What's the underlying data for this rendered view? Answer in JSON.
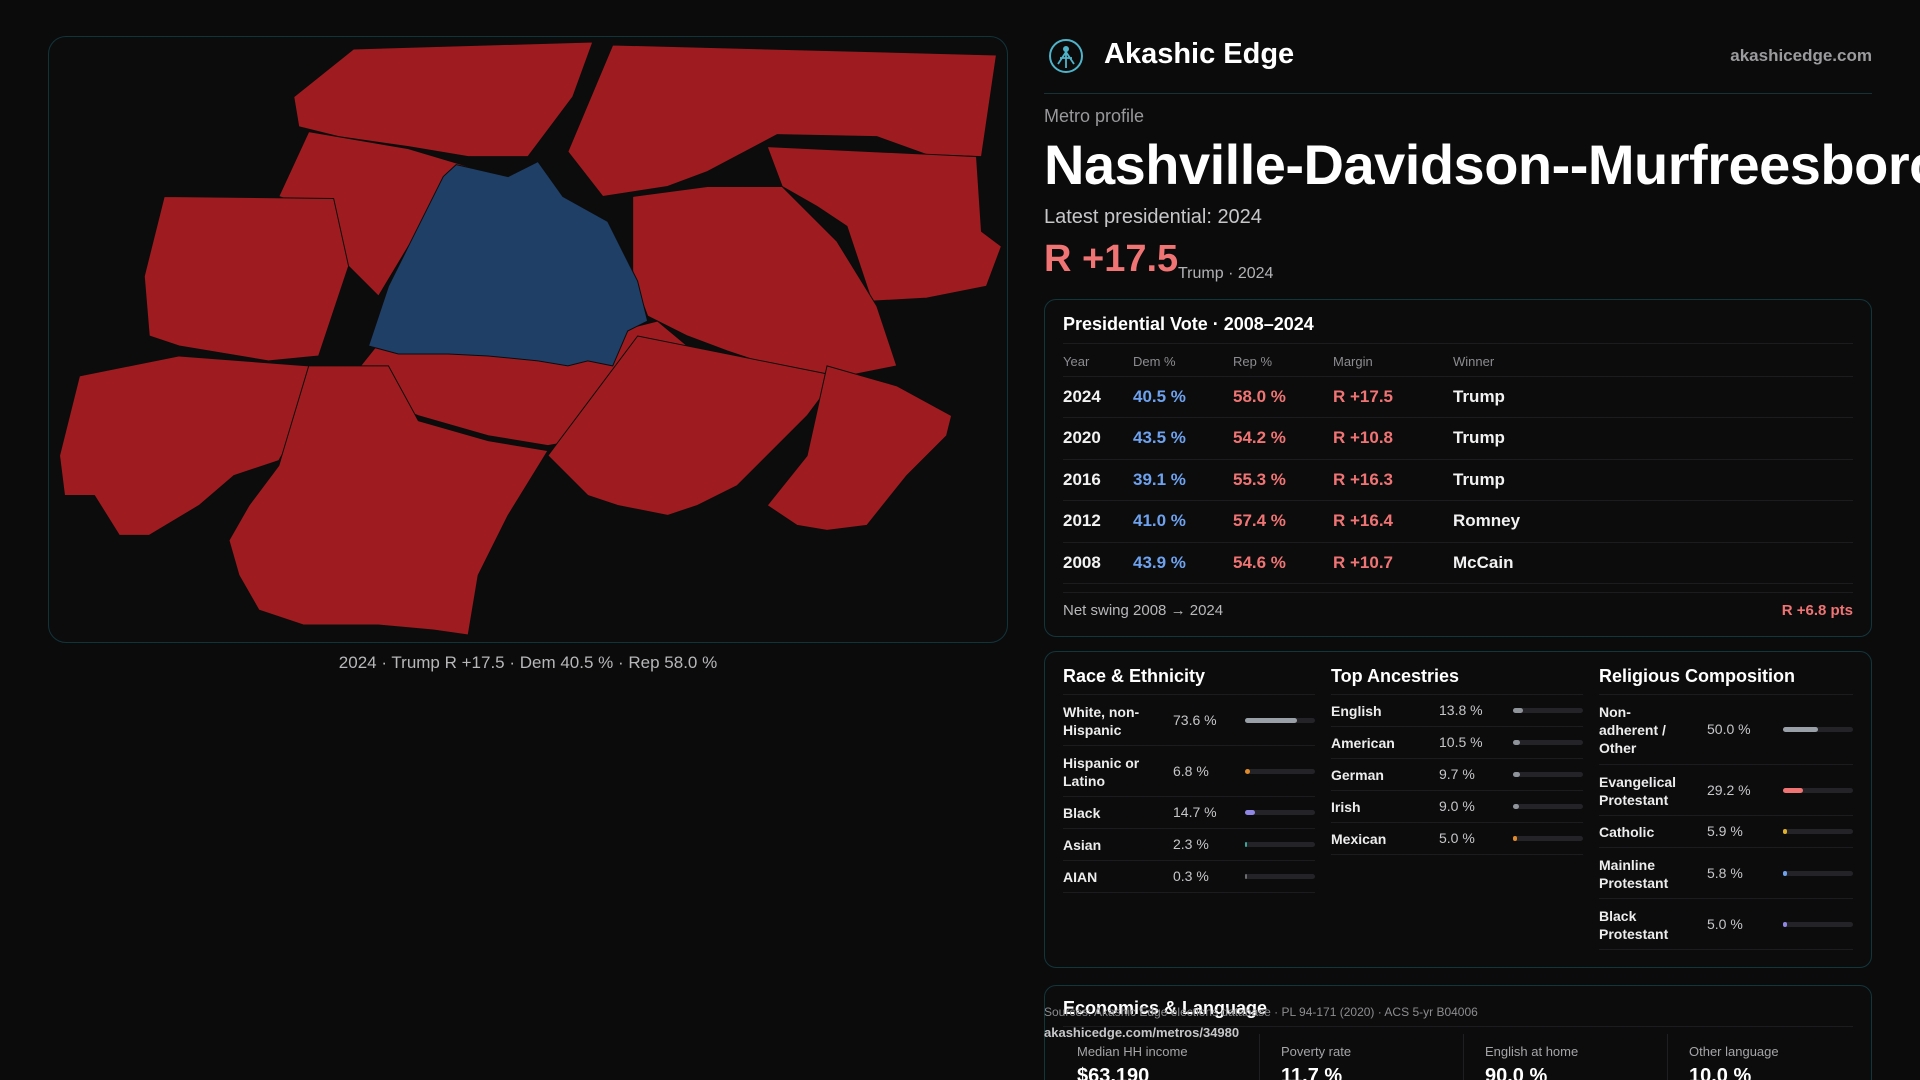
{
  "brand": {
    "name": "Akashic Edge",
    "domain": "akashicedge.com",
    "logo_icon": "compass-person-icon",
    "accent": "#4fb3c9"
  },
  "map": {
    "caption": "2024 · Trump R +17.5 · Dem 40.5 % · Rep 58.0 %",
    "rep_color": "#9e1c1f",
    "dem_color": "#1f3f66"
  },
  "header": {
    "eyebrow": "Metro profile",
    "title": "Nashville-Davidson--Murfreesboro",
    "latest": "Latest presidential: 2024",
    "margin": "R +17.5",
    "margin_sub": "Trump · 2024"
  },
  "vote": {
    "title": "Presidential Vote · 2008–2024",
    "columns": [
      "Year",
      "Dem %",
      "Rep %",
      "Margin",
      "Winner"
    ],
    "rows": [
      {
        "year": "2024",
        "dem": "40.5 %",
        "rep": "58.0 %",
        "margin": "R +17.5",
        "winner": "Trump"
      },
      {
        "year": "2020",
        "dem": "43.5 %",
        "rep": "54.2 %",
        "margin": "R +10.8",
        "winner": "Trump"
      },
      {
        "year": "2016",
        "dem": "39.1 %",
        "rep": "55.3 %",
        "margin": "R +16.3",
        "winner": "Trump"
      },
      {
        "year": "2012",
        "dem": "41.0 %",
        "rep": "57.4 %",
        "margin": "R +16.4",
        "winner": "Romney"
      },
      {
        "year": "2008",
        "dem": "43.9 %",
        "rep": "54.6 %",
        "margin": "R +10.7",
        "winner": "McCain"
      }
    ],
    "swing_label": "Net swing 2008 → 2024",
    "swing_value": "R +6.8 pts"
  },
  "race": {
    "title": "Race & Ethnicity",
    "rows": [
      {
        "label": "White, non-Hispanic",
        "value": "73.6 %",
        "share": 0.736,
        "color": "#9aa0a8"
      },
      {
        "label": "Hispanic or Latino",
        "value": "6.8 %",
        "share": 0.068,
        "color": "#e08a2a"
      },
      {
        "label": "Black",
        "value": "14.7 %",
        "share": 0.147,
        "color": "#8f86e6"
      },
      {
        "label": "Asian",
        "value": "2.3 %",
        "share": 0.023,
        "color": "#3aa79a"
      },
      {
        "label": "AIAN",
        "value": "0.3 %",
        "share": 0.003,
        "color": "#6b6b70"
      }
    ]
  },
  "ancestry": {
    "title": "Top Ancestries",
    "rows": [
      {
        "label": "English",
        "value": "13.8 %",
        "share": 0.138,
        "color": "#8f949b"
      },
      {
        "label": "American",
        "value": "10.5 %",
        "share": 0.105,
        "color": "#8f949b"
      },
      {
        "label": "German",
        "value": "9.7 %",
        "share": 0.097,
        "color": "#8f949b"
      },
      {
        "label": "Irish",
        "value": "9.0 %",
        "share": 0.09,
        "color": "#8f949b"
      },
      {
        "label": "Mexican",
        "value": "5.0 %",
        "share": 0.05,
        "color": "#e08a2a"
      }
    ]
  },
  "religion": {
    "title": "Religious Composition",
    "rows": [
      {
        "label": "Non-adherent / Other",
        "value": "50.0 %",
        "share": 0.5,
        "color": "#9aa0a8"
      },
      {
        "label": "Evangelical Protestant",
        "value": "29.2 %",
        "share": 0.292,
        "color": "#f07474"
      },
      {
        "label": "Catholic",
        "value": "5.9 %",
        "share": 0.059,
        "color": "#e0b02a"
      },
      {
        "label": "Mainline Protestant",
        "value": "5.8 %",
        "share": 0.058,
        "color": "#6ea2ef"
      },
      {
        "label": "Black Protestant",
        "value": "5.0 %",
        "share": 0.05,
        "color": "#8f86e6"
      }
    ]
  },
  "economics": {
    "title": "Economics & Language",
    "stats": [
      {
        "label": "Median HH income",
        "value": "$63,190"
      },
      {
        "label": "Poverty rate",
        "value": "11.7 %"
      },
      {
        "label": "English at home",
        "value": "90.0 %"
      },
      {
        "label": "Other language",
        "value": "10.0 %"
      }
    ]
  },
  "footer": {
    "sources": "Sources: Akashic Edge elections database · PL 94-171 (2020) · ACS 5-yr B04006",
    "url": "akashicedge.com/metros/34980"
  }
}
